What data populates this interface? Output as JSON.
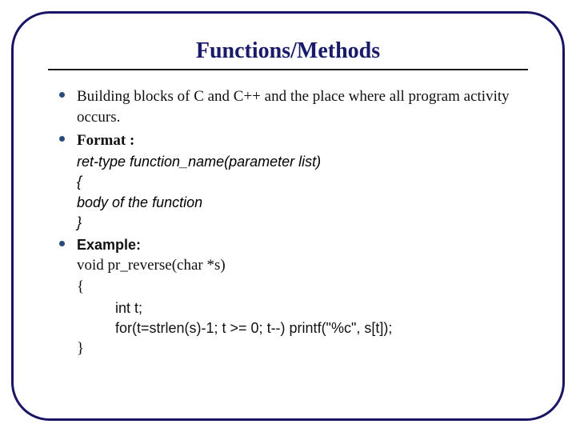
{
  "title": "Functions/Methods",
  "frame_border_color": "#1a1464",
  "frame_border_radius": 48,
  "title_color": "#1a1a6a",
  "title_fontsize": 28,
  "body_fontsize": 19,
  "bullet_color": "#2a4a7a",
  "background_color": "#ffffff",
  "items": {
    "b1": "Building blocks of C and C++ and the place where all program activity occurs.",
    "b2_label": "Format :",
    "format_lines": {
      "l1": "ret-type function_name(parameter list)",
      "l2": "{",
      "l3": "body of the function",
      "l4": "}"
    },
    "b3_label": "Example:",
    "example_lines": {
      "l1": "void pr_reverse(char *s)",
      "l2": "{",
      "l3": "int t;",
      "l4": "for(t=strlen(s)-1; t >= 0; t--) printf(\"%c\", s[t]);",
      "l5": "}"
    }
  }
}
